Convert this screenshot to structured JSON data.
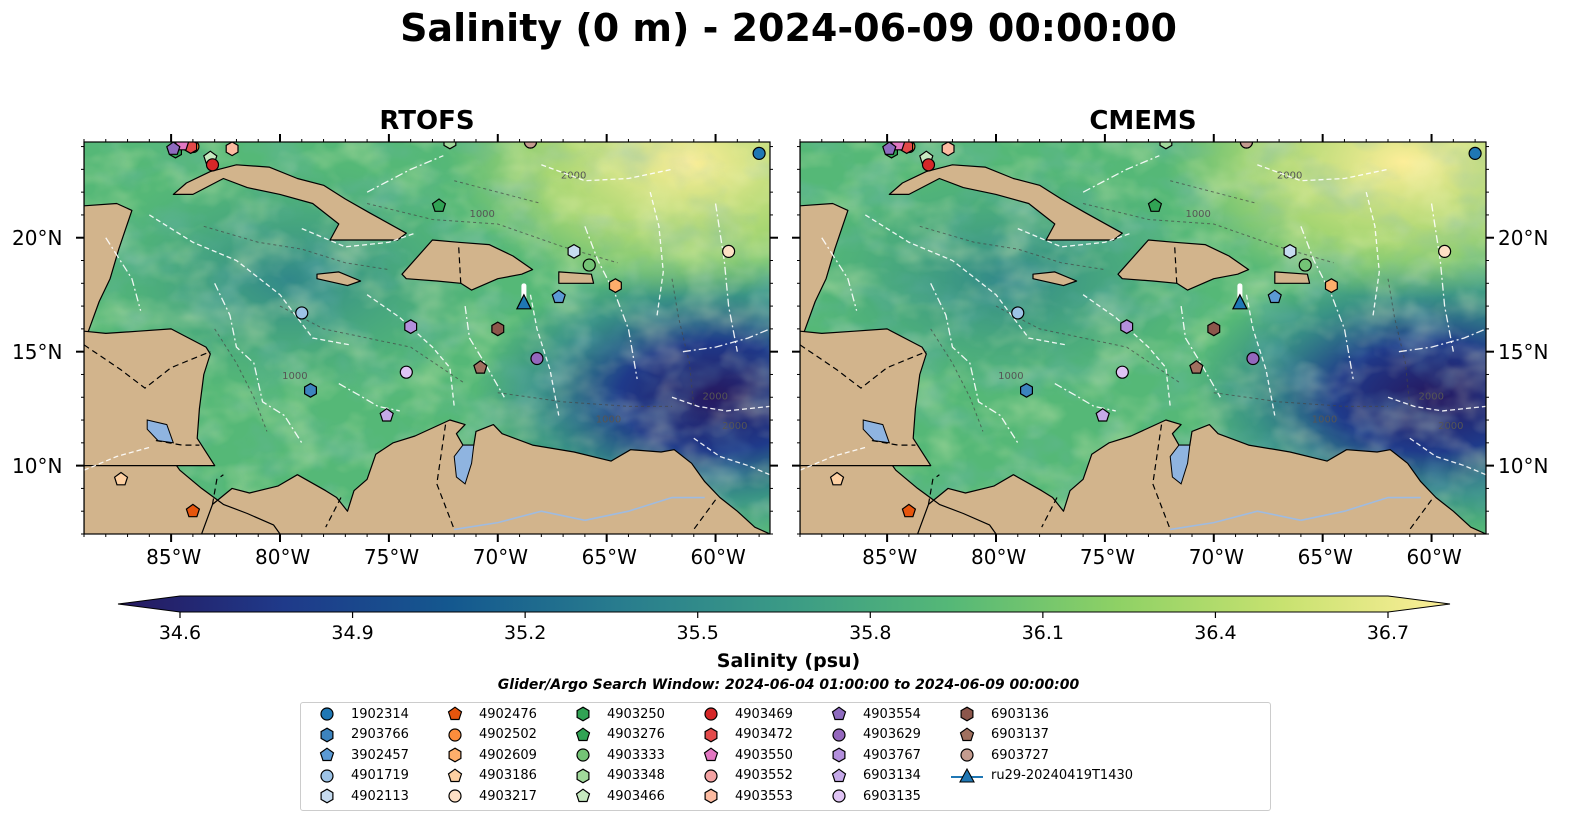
{
  "title": "Salinity (0 m) - 2024-06-09 00:00:00",
  "panels": [
    {
      "name": "RTOFS"
    },
    {
      "name": "CMEMS"
    }
  ],
  "map": {
    "lon_range": [
      -89,
      -57.5
    ],
    "lat_range": [
      7,
      24.2
    ],
    "lon_ticks": [
      -85,
      -80,
      -75,
      -70,
      -65,
      -60
    ],
    "lon_tick_labels": [
      "85°W",
      "80°W",
      "75°W",
      "70°W",
      "65°W",
      "60°W"
    ],
    "lat_ticks": [
      10,
      15,
      20
    ],
    "lat_tick_labels": [
      "10°N",
      "15°N",
      "20°N"
    ],
    "contour_labels": [
      "1000",
      "1000",
      "1000",
      "2000",
      "2000",
      "2000"
    ],
    "land_color": "#d2b48c",
    "lake_color": "#8fb4e0"
  },
  "colorbar": {
    "label": "Salinity (psu)",
    "ticks": [
      "34.6",
      "34.9",
      "35.2",
      "35.5",
      "35.8",
      "36.1",
      "36.4",
      "36.7"
    ],
    "min": 34.6,
    "max": 36.7,
    "colors": [
      "#26185f",
      "#1f3a8a",
      "#14588f",
      "#287c8e",
      "#3a9a86",
      "#55b877",
      "#8ed165",
      "#c8e270",
      "#fdee99"
    ]
  },
  "search_window": "Glider/Argo Search Window: 2024-06-04 01:00:00 to 2024-06-09 00:00:00",
  "floats": [
    {
      "id": "1902314",
      "marker": "circle",
      "color": "#1f77b4",
      "lon": -58,
      "lat": 23.7
    },
    {
      "id": "2903766",
      "marker": "hexagon",
      "color": "#3c83be",
      "lon": -78.6,
      "lat": 13.3
    },
    {
      "id": "3902457",
      "marker": "pentagon",
      "color": "#5b9ad5",
      "lon": -67.2,
      "lat": 17.4
    },
    {
      "id": "4901719",
      "marker": "circle",
      "color": "#9dc3e6",
      "lon": -79,
      "lat": 16.7
    },
    {
      "id": "4902113",
      "marker": "hexagon",
      "color": "#c6dbef",
      "lon": -66.5,
      "lat": 19.4
    },
    {
      "id": "4902476",
      "marker": "pentagon",
      "color": "#e6550d",
      "lon": -84,
      "lat": 8
    },
    {
      "id": "4902502",
      "marker": "circle",
      "color": "#fd8d3c",
      "lon": -84,
      "lat": 24
    },
    {
      "id": "4902609",
      "marker": "hexagon",
      "color": "#fdae6b",
      "lon": -64.6,
      "lat": 17.9
    },
    {
      "id": "4903186",
      "marker": "pentagon",
      "color": "#fdd0a2",
      "lon": -87.3,
      "lat": 9.4
    },
    {
      "id": "4903217",
      "marker": "circle",
      "color": "#fde0c5",
      "lon": -59.4,
      "lat": 19.4
    },
    {
      "id": "4903250",
      "marker": "hexagon",
      "color": "#31a354",
      "lon": -84.8,
      "lat": 23.8
    },
    {
      "id": "4903276",
      "marker": "pentagon",
      "color": "#31a354",
      "lon": -72.7,
      "lat": 21.4
    },
    {
      "id": "4903333",
      "marker": "circle",
      "color": "#74c476",
      "lon": -65.8,
      "lat": 18.8
    },
    {
      "id": "4903348",
      "marker": "hexagon",
      "color": "#a1d99b",
      "lon": -72.2,
      "lat": 24.2
    },
    {
      "id": "4903466",
      "marker": "pentagon",
      "color": "#c7e9c0",
      "lon": -83.2,
      "lat": 23.5
    },
    {
      "id": "4903469",
      "marker": "circle",
      "color": "#d62728",
      "lon": -83.1,
      "lat": 23.2
    },
    {
      "id": "4903472",
      "marker": "hexagon",
      "color": "#e34a4a",
      "lon": -84.1,
      "lat": 24
    },
    {
      "id": "4903550",
      "marker": "pentagon",
      "color": "#e377c2",
      "lon": -84.5,
      "lat": 24.1
    },
    {
      "id": "4903552",
      "marker": "circle",
      "color": "#f4a3a3",
      "lon": -68.5,
      "lat": 24.2
    },
    {
      "id": "4903553",
      "marker": "hexagon",
      "color": "#fcbba1",
      "lon": -82.2,
      "lat": 23.9
    },
    {
      "id": "4903554",
      "marker": "pentagon",
      "color": "#8e6bbf",
      "lon": -84.9,
      "lat": 23.9
    },
    {
      "id": "4903629",
      "marker": "circle",
      "color": "#9467bd",
      "lon": -68.2,
      "lat": 14.7
    },
    {
      "id": "4903767",
      "marker": "hexagon",
      "color": "#b38fdc",
      "lon": -74,
      "lat": 16.1
    },
    {
      "id": "6903134",
      "marker": "pentagon",
      "color": "#c5a9e8",
      "lon": -75.1,
      "lat": 12.2
    },
    {
      "id": "6903135",
      "marker": "circle",
      "color": "#e0c4f4",
      "lon": -74.2,
      "lat": 14.1
    },
    {
      "id": "6903136",
      "marker": "hexagon",
      "color": "#8c564b",
      "lon": -70,
      "lat": 16
    },
    {
      "id": "6903137",
      "marker": "pentagon",
      "color": "#a0705f",
      "lon": -70.8,
      "lat": 14.3
    },
    {
      "id": "6903727",
      "marker": "circle",
      "color": "#c49c8f",
      "lon": -68.5,
      "lat": 24.2
    }
  ],
  "glider": {
    "id": "ru29-20240419T1430",
    "marker": "triangle",
    "color": "#1f77b4",
    "lon": -68.8,
    "lat": 17.1
  }
}
